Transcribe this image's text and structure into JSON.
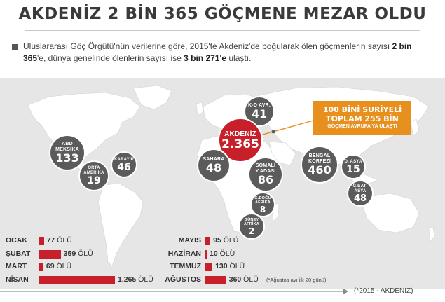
{
  "title": "AKDENİZ 2 BİN 365 GÖÇMENE MEZAR OLDU",
  "intro": {
    "part1": "Uluslararası Göç Örgütü'nün verilerine göre, 2015'te Akdeniz'de boğularak ölen göçmenlerin sayısı ",
    "bold1": "2 bin 365",
    "part2": "'e, dünya genelinde ölenlerin sayısı ise ",
    "bold2": "3 bin 271'e",
    "part3": " ulaştı."
  },
  "regions": {
    "kd_avr": {
      "label": "K-D AVR.",
      "value": "41"
    },
    "akdeniz": {
      "label": "AKDENİZ",
      "value": "2.365"
    },
    "abd_meksika": {
      "label1": "ABD",
      "label2": "MEKSİKA",
      "value": "133"
    },
    "karayip": {
      "label": "KARAYİP",
      "value": "46"
    },
    "orta_amerika": {
      "label1": "ORTA",
      "label2": "AMERİKA",
      "value": "19"
    },
    "sahara": {
      "label": "SAHARA",
      "value": "48"
    },
    "somali": {
      "label1": "SOMALİ",
      "label2": "Y.ADASI",
      "value": "86"
    },
    "bengal": {
      "label1": "BENGAL",
      "label2": "KÖRFEZİ",
      "value": "460"
    },
    "d_asya": {
      "label": "D. ASYA",
      "value": "15"
    },
    "g_bati_asya": {
      "label1": "G.BATI",
      "label2": "ASYA",
      "value": "48"
    },
    "g_dogu_afrika": {
      "label1": "G.DOĞU",
      "label2": "AFRİKA",
      "value": "8"
    },
    "guney_afrika": {
      "label1": "GÜNEY",
      "label2": "AFRİKA",
      "value": "2"
    }
  },
  "callout": {
    "line1": "100 BİNİ SURİYELİ",
    "line2": "TOPLAM 255 BİN",
    "line3": "GÖÇMEN AVRUPA'YA ULAŞTI"
  },
  "months_left": [
    {
      "name": "OCAK",
      "value": "77",
      "unit": "ÖLÜ",
      "count": 77
    },
    {
      "name": "ŞUBAT",
      "value": "359",
      "unit": "ÖLÜ",
      "count": 359
    },
    {
      "name": "MART",
      "value": "69",
      "unit": "ÖLÜ",
      "count": 69
    },
    {
      "name": "NİSAN",
      "value": "1.265",
      "unit": "ÖLÜ",
      "count": 1265
    }
  ],
  "months_right": [
    {
      "name": "MAYIS",
      "value": "95",
      "unit": "ÖLÜ",
      "count": 95
    },
    {
      "name": "HAZİRAN",
      "value": "10",
      "unit": "ÖLÜ",
      "count": 10
    },
    {
      "name": "TEMMUZ",
      "value": "130",
      "unit": "ÖLÜ",
      "count": 130
    },
    {
      "name": "AĞUSTOS",
      "value": "360",
      "unit": "ÖLÜ",
      "count": 360
    }
  ],
  "note": "(*Ağustos ayı ilk 20 günü)",
  "source": "(*2015 - AKDENİZ)",
  "colors": {
    "bar": "#c8202a",
    "bubble": "#5b5b5b",
    "highlight": "#c8202a",
    "callout": "#e8901e",
    "land": "#ffffff",
    "sea": "#e6e6e6"
  }
}
